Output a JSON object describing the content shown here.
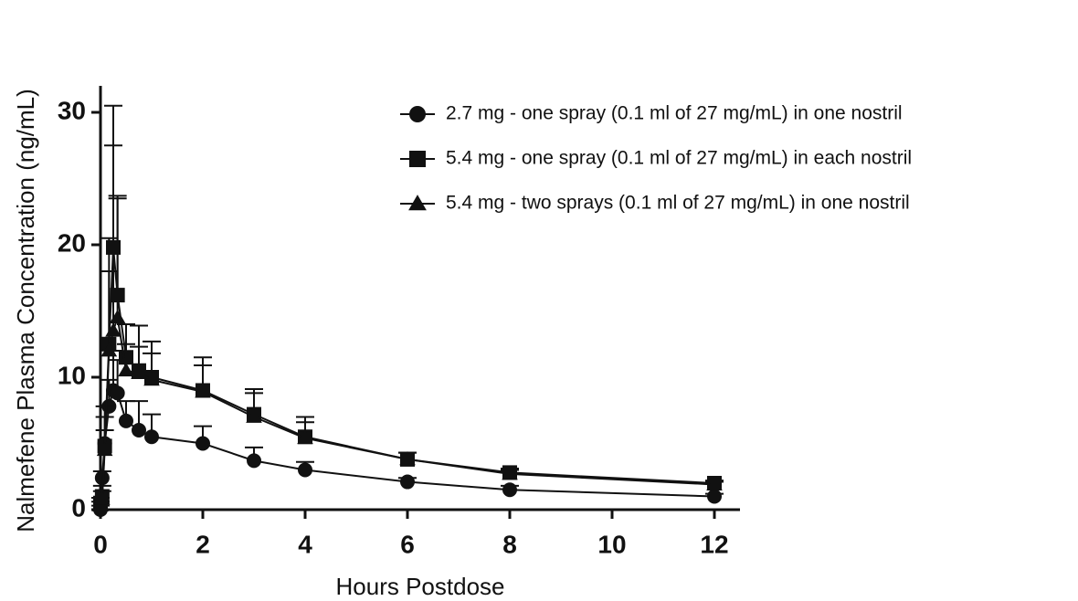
{
  "chart_data": {
    "type": "line",
    "x_label": "Hours Postdose",
    "y_label": "Nalmefene Plasma Concentration  (ng/mL)",
    "x": [
      0,
      0.033,
      0.083,
      0.167,
      0.25,
      0.333,
      0.5,
      0.75,
      1,
      2,
      3,
      4,
      6,
      8,
      12
    ],
    "series": [
      {
        "name": "2.7 mg - one spray (0.1 ml of 27 mg/mL) in one nostril",
        "color": "#111111",
        "marker": "circle",
        "values": [
          0,
          2.4,
          5.0,
          7.8,
          9.0,
          8.8,
          6.7,
          6.0,
          5.5,
          5.0,
          3.7,
          3.0,
          2.1,
          1.5,
          1.0
        ],
        "errors": [
          0.3,
          0.5,
          1.0,
          2.0,
          3.0,
          2.5,
          1.5,
          2.2,
          1.7,
          1.3,
          1.0,
          0.6,
          0.3,
          0.3,
          0.2
        ]
      },
      {
        "name": "5.4 mg - one spray (0.1 ml of 27 mg/mL) in each nostril",
        "color": "#111111",
        "marker": "square",
        "values": [
          0.5,
          1.0,
          4.8,
          12.5,
          19.8,
          16.2,
          11.5,
          10.5,
          10.0,
          9.0,
          7.2,
          5.5,
          3.8,
          2.8,
          2.0
        ],
        "errors": [
          0.4,
          0.8,
          3.0,
          8.0,
          10.7,
          7.5,
          2.5,
          3.4,
          2.7,
          2.5,
          1.9,
          1.5,
          0.5,
          0.3,
          0.2
        ]
      },
      {
        "name": "5.4 mg - two sprays (0.1 ml of 27 mg/mL) in one nostril",
        "color": "#111111",
        "marker": "triangle",
        "values": [
          0.3,
          0.8,
          4.5,
          12.0,
          13.5,
          14.5,
          10.5,
          10.3,
          9.8,
          8.9,
          7.0,
          5.4,
          3.8,
          2.7,
          1.9
        ],
        "errors": [
          0.3,
          0.6,
          2.5,
          6.0,
          14.0,
          9.0,
          2.0,
          2.0,
          2.0,
          2.0,
          1.8,
          1.2,
          0.5,
          0.3,
          0.2
        ]
      }
    ],
    "xlim": [
      0,
      12.5
    ],
    "xticks": [
      0,
      2,
      4,
      6,
      8,
      10,
      12
    ],
    "ylim": [
      0,
      32
    ],
    "yticks": [
      0,
      10,
      20,
      30
    ],
    "grid": false,
    "legend": "upper right"
  }
}
